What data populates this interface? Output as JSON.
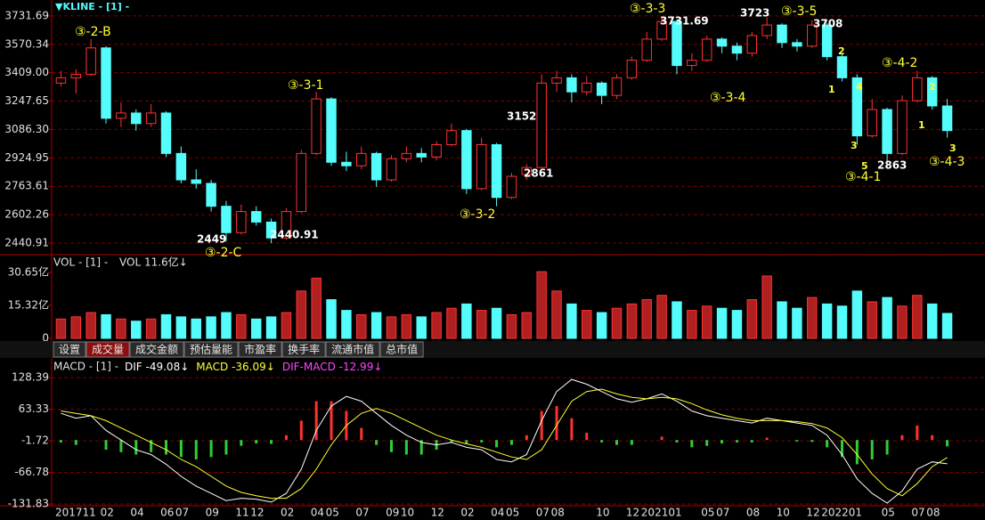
{
  "chart_data": [
    {
      "type": "candlestick",
      "title": "▼KLINE - [1] -",
      "categories": [
        "201711",
        null,
        null,
        "02",
        null,
        "04",
        null,
        "06",
        "07",
        null,
        "09",
        null,
        "11",
        "12",
        null,
        "02",
        null,
        "04",
        "05",
        null,
        "07",
        null,
        "09",
        "10",
        null,
        "12",
        null,
        "02",
        null,
        "04",
        "05",
        null,
        "07",
        "08",
        null,
        null,
        "10",
        null,
        "12",
        "202101",
        null,
        null,
        null,
        "05",
        "07",
        null,
        "08",
        null,
        "10",
        null,
        "12",
        "202201",
        null,
        null,
        null,
        "05",
        null,
        "07",
        "08",
        null
      ],
      "open": [
        3350,
        3380,
        3400,
        3550,
        3150,
        3180,
        3120,
        3180,
        2950,
        2800,
        2780,
        2650,
        2500,
        2620,
        2560,
        2470,
        2620,
        2950,
        3260,
        2900,
        2880,
        2950,
        2800,
        2920,
        2950,
        2930,
        3000,
        3080,
        2750,
        3000,
        2700,
        2830,
        2870,
        3350,
        3380,
        3300,
        3350,
        3280,
        3380,
        3480,
        3600,
        3700,
        3450,
        3480,
        3600,
        3560,
        3520,
        3620,
        3680,
        3580,
        3560,
        3680,
        3500,
        3380,
        3050,
        3200,
        2950,
        3250,
        3380,
        3220
      ],
      "high": [
        3420,
        3430,
        3600,
        3560,
        3240,
        3200,
        3230,
        3190,
        2990,
        2860,
        2800,
        2680,
        2660,
        2650,
        2580,
        2640,
        2970,
        3300,
        3270,
        2960,
        2990,
        2960,
        2940,
        2990,
        2980,
        3020,
        3120,
        3090,
        3040,
        3010,
        2840,
        2890,
        3400,
        3420,
        3400,
        3390,
        3360,
        3400,
        3500,
        3640,
        3731.69,
        3710,
        3520,
        3620,
        3610,
        3580,
        3640,
        3723,
        3690,
        3600,
        3708,
        3690,
        3520,
        3400,
        3260,
        3210,
        3280,
        3420,
        3390,
        3260
      ],
      "low": [
        3330,
        3290,
        3390,
        3120,
        3100,
        3080,
        3100,
        2930,
        2780,
        2750,
        2620,
        2449,
        2490,
        2540,
        2440.91,
        2460,
        2610,
        2940,
        2880,
        2850,
        2860,
        2760,
        2790,
        2900,
        2900,
        2910,
        2990,
        2720,
        2740,
        2650,
        2690,
        2800,
        2860,
        3300,
        3240,
        3280,
        3230,
        3260,
        3370,
        3470,
        3590,
        3400,
        3420,
        3470,
        3520,
        3480,
        3500,
        3600,
        3550,
        3530,
        3550,
        3480,
        3360,
        3000,
        3040,
        2863,
        2940,
        3240,
        3200,
        3040
      ],
      "close": [
        3380,
        3400,
        3550,
        3150,
        3180,
        3120,
        3180,
        2950,
        2800,
        2780,
        2650,
        2500,
        2620,
        2560,
        2470,
        2620,
        2950,
        3260,
        2900,
        2880,
        2950,
        2800,
        2920,
        2950,
        2930,
        3000,
        3080,
        2750,
        3000,
        2700,
        2820,
        2870,
        3350,
        3380,
        3300,
        3350,
        3280,
        3380,
        3480,
        3600,
        3700,
        3450,
        3480,
        3600,
        3560,
        3520,
        3620,
        3680,
        3580,
        3560,
        3680,
        3500,
        3380,
        3050,
        3200,
        2950,
        3250,
        3380,
        3220,
        3080
      ],
      "up_color": "#ff3232",
      "down_color": "#54fcfc",
      "ylim": [
        2380,
        3807
      ],
      "yticks": [
        3731.69,
        3570.34,
        {
          "value": 3409,
          "label": "3409.00"
        },
        3247.65,
        {
          "value": 3086.3,
          "label": "3086.30"
        },
        2924.95,
        2763.61,
        2602.26,
        2440.91
      ],
      "grid": true,
      "wave_labels": [
        "③-2-B",
        "③-3-1",
        "③-2-C",
        "③-3-2",
        "③-3-3",
        "③-3-4",
        "③-3-5",
        "③-4-2",
        "③-4-1",
        "③-4-3"
      ],
      "price_labels": [
        "2449",
        "2440.91",
        "3152",
        "2861",
        "3731.69",
        "3723",
        "3708",
        "2863"
      ],
      "count_labels": [
        "1",
        "2",
        "4",
        "3",
        "5",
        "2",
        "1",
        "3"
      ]
    },
    {
      "type": "bar",
      "title": "VOL - [1] -",
      "indicator": "VOL 11.6亿↓",
      "values": [
        9,
        10,
        12,
        11,
        9,
        8,
        9,
        11,
        10,
        9,
        10,
        12,
        11,
        9,
        10,
        12,
        22,
        28,
        18,
        13,
        11,
        12,
        10,
        11,
        10,
        12,
        14,
        16,
        13,
        14,
        11,
        12,
        31,
        22,
        16,
        13,
        12,
        14,
        16,
        18,
        20,
        17,
        13,
        15,
        14,
        13,
        18,
        29,
        17,
        14,
        19,
        16,
        15,
        22,
        17,
        19,
        15,
        20,
        16,
        11.6
      ],
      "ylim": [
        0,
        38.1
      ],
      "yticks": [
        {
          "value": 30.65,
          "label": "30.65亿"
        },
        {
          "value": 15.32,
          "label": "15.32亿"
        },
        0
      ]
    },
    {
      "type": "macd",
      "title": "MACD - [1] -",
      "series": [
        {
          "name": "DIF",
          "color": "#ffffff",
          "current": "-49.08↓",
          "values": [
            55,
            45,
            50,
            20,
            0,
            -20,
            -30,
            -50,
            -75,
            -95,
            -110,
            -125,
            -120,
            -122,
            -128,
            -110,
            -60,
            20,
            70,
            90,
            80,
            55,
            30,
            10,
            -5,
            -10,
            -5,
            -15,
            -20,
            -40,
            -45,
            -30,
            40,
            100,
            125,
            115,
            100,
            85,
            78,
            85,
            95,
            80,
            60,
            50,
            45,
            40,
            35,
            45,
            40,
            35,
            30,
            10,
            -30,
            -80,
            -110,
            -130,
            -105,
            -60,
            -45,
            -49.08
          ]
        },
        {
          "name": "MACD",
          "color": "#ffff33",
          "current": "-36.09↓",
          "values": [
            60,
            55,
            50,
            40,
            25,
            10,
            -5,
            -20,
            -40,
            -55,
            -75,
            -95,
            -108,
            -115,
            -120,
            -120,
            -100,
            -60,
            -10,
            30,
            55,
            65,
            55,
            40,
            25,
            10,
            0,
            -8,
            -15,
            -25,
            -35,
            -40,
            -20,
            30,
            80,
            100,
            105,
            95,
            88,
            85,
            88,
            85,
            75,
            62,
            52,
            45,
            40,
            40,
            40,
            38,
            34,
            25,
            5,
            -30,
            -70,
            -100,
            -115,
            -90,
            -55,
            -36.09
          ]
        },
        {
          "name": "DIF-MACD",
          "color": "#ff44ff",
          "up_color": "#ff3232",
          "down_color": "#33cc33",
          "current": "-12.99↓",
          "values": [
            -5,
            -10,
            0,
            -20,
            -25,
            -30,
            -25,
            -30,
            -35,
            -40,
            -35,
            -30,
            -12,
            -7,
            -8,
            10,
            40,
            80,
            80,
            60,
            25,
            -10,
            -25,
            -30,
            -30,
            -20,
            -5,
            -7,
            -5,
            -15,
            -10,
            10,
            60,
            70,
            45,
            15,
            -5,
            -10,
            -10,
            0,
            7,
            -5,
            -15,
            -12,
            -7,
            -5,
            -5,
            5,
            0,
            -3,
            -4,
            -15,
            -35,
            -50,
            -40,
            -30,
            10,
            30,
            10,
            -12.99
          ]
        }
      ],
      "ylim": [
        -135.5,
        163.7
      ],
      "yticks": [
        128.39,
        63.33,
        -1.72,
        -66.78,
        -131.83
      ]
    }
  ],
  "tabs": [
    "设置",
    "成交量",
    "成交金额",
    "预估量能",
    "市盈率",
    "换手率",
    "流通市值",
    "总市值"
  ],
  "active_tab": 1
}
